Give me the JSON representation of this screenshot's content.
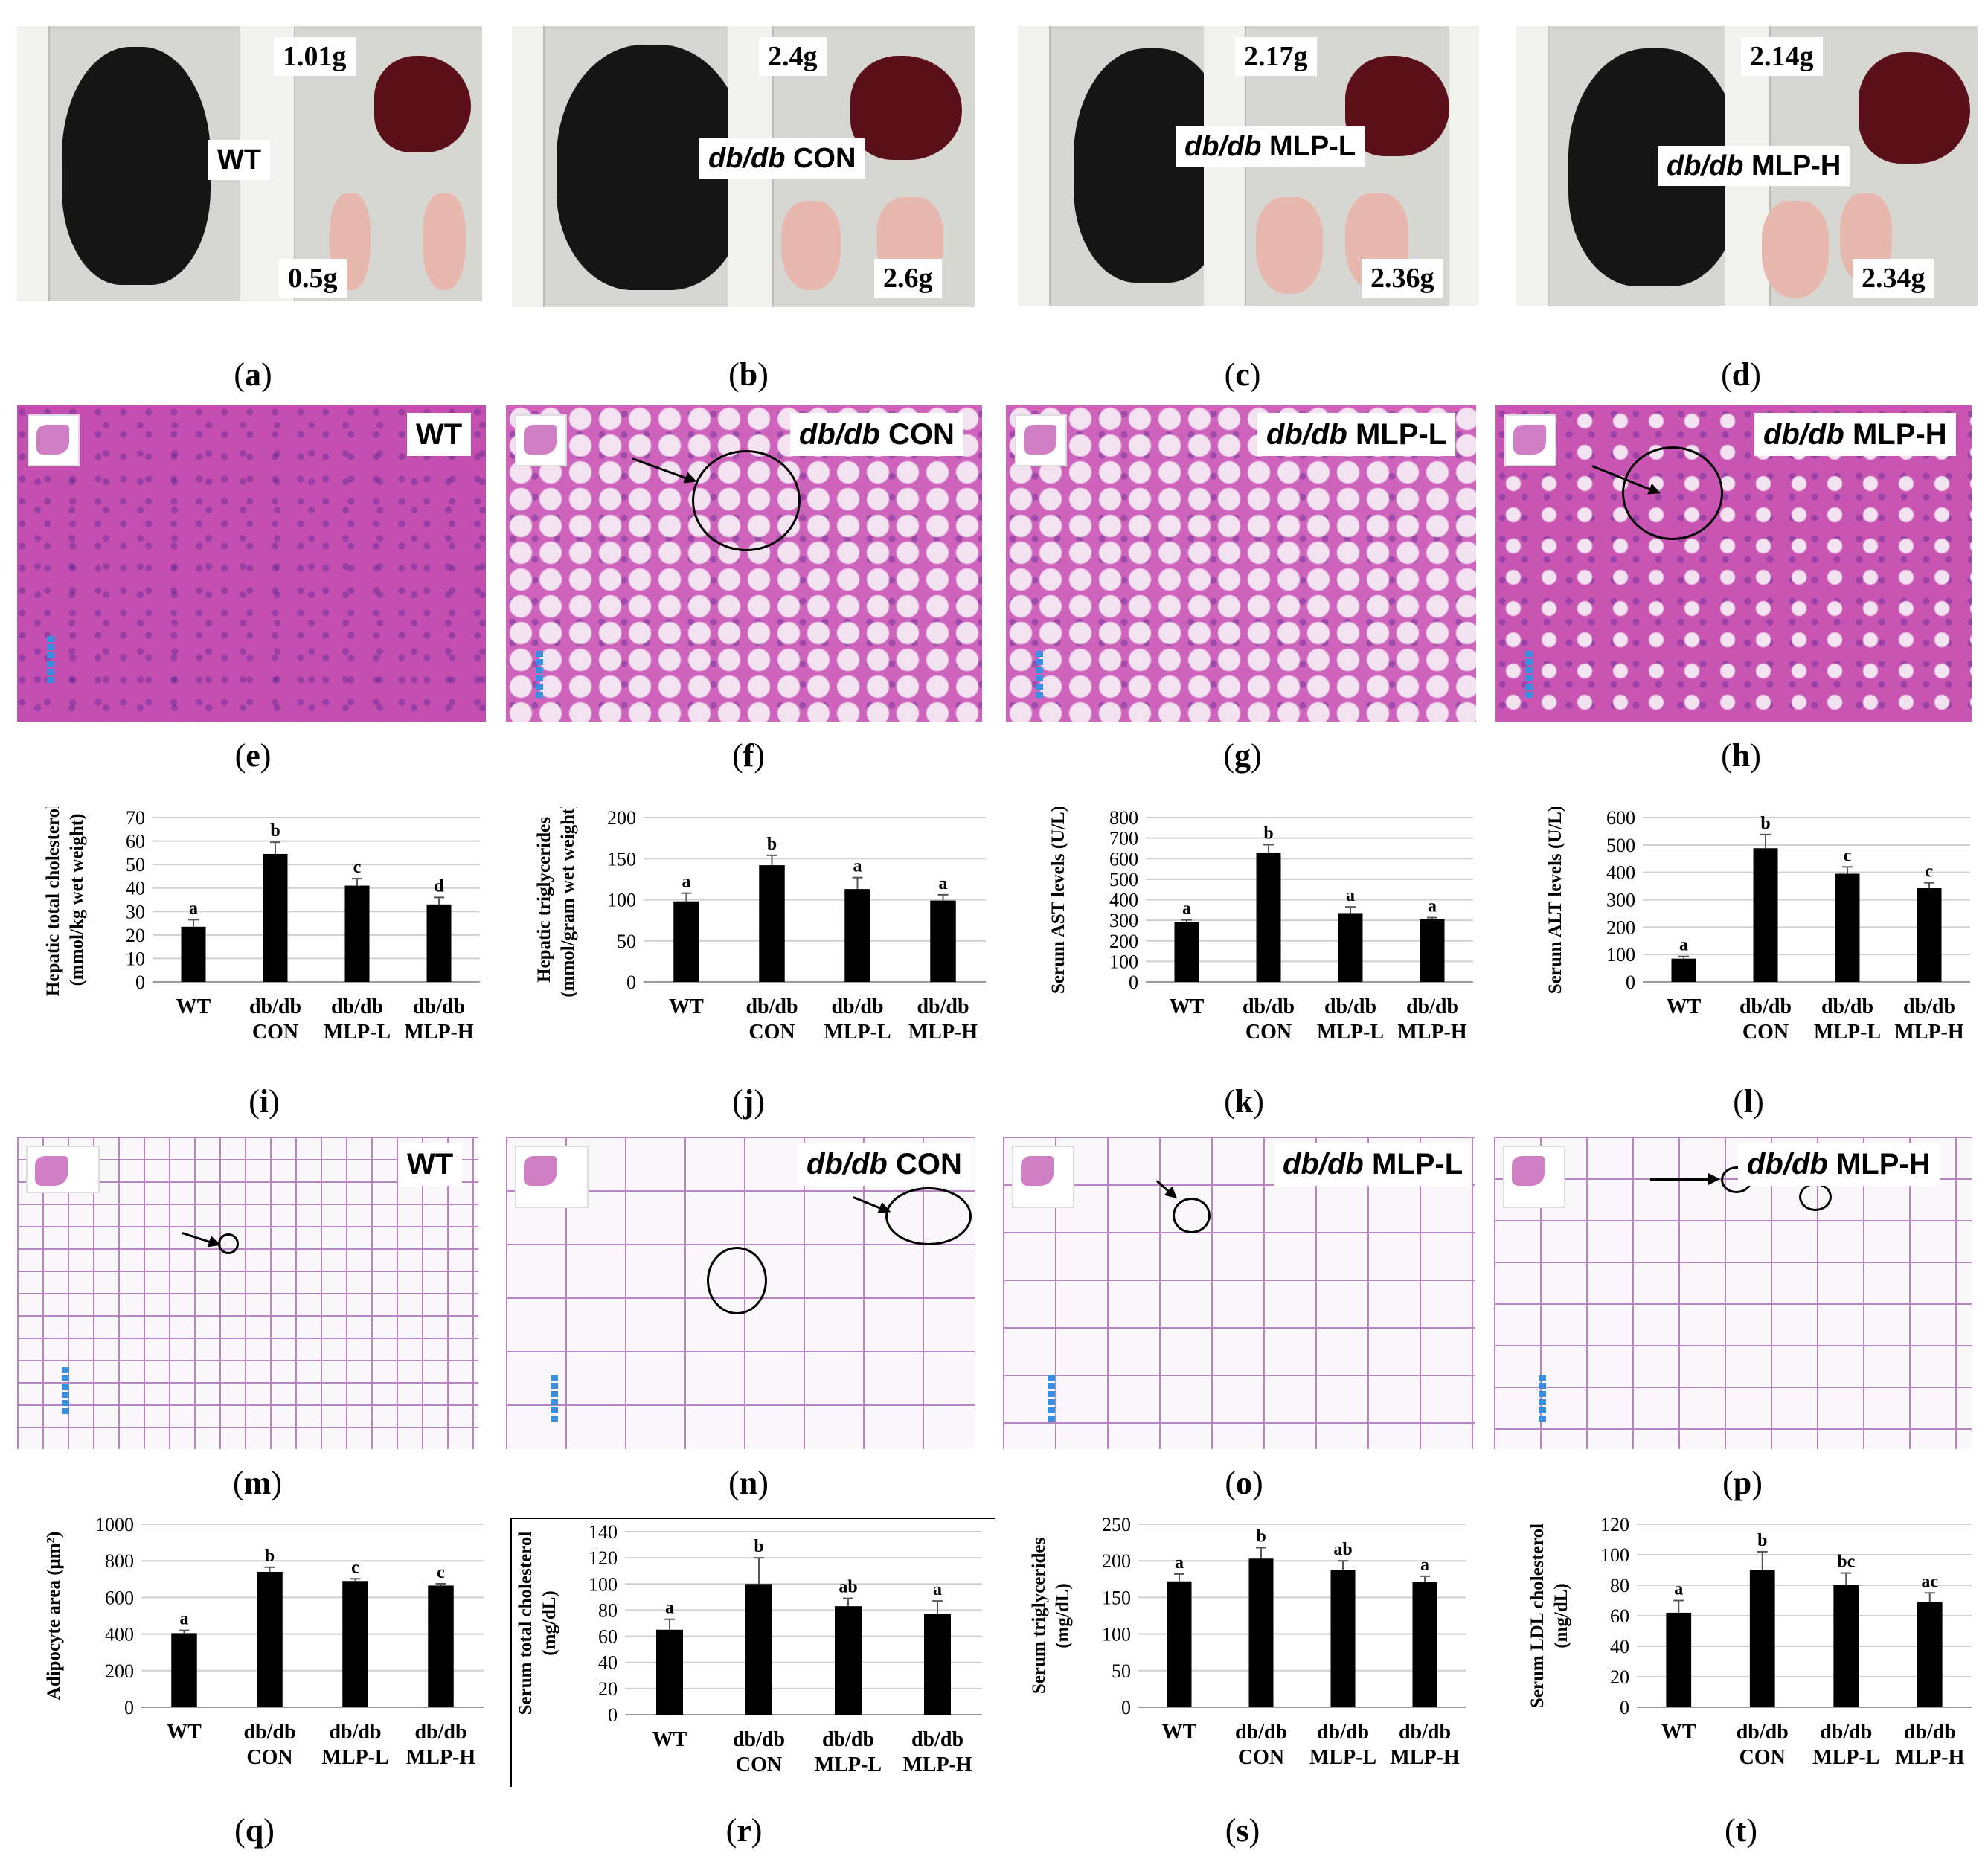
{
  "captions": [
    "a",
    "b",
    "c",
    "d",
    "e",
    "f",
    "g",
    "h",
    "i",
    "j",
    "k",
    "l",
    "m",
    "n",
    "o",
    "p",
    "q",
    "r",
    "s",
    "t"
  ],
  "photos": [
    {
      "group_italic": "",
      "group_rest": "WT",
      "liver_weight": "1.01g",
      "fat_weight": "0.5g"
    },
    {
      "group_italic": "db/db",
      "group_rest": "CON",
      "liver_weight": "2.4g",
      "fat_weight": "2.6g"
    },
    {
      "group_italic": "db/db",
      "group_rest": "MLP-L",
      "liver_weight": "2.17g",
      "fat_weight": "2.36g"
    },
    {
      "group_italic": "db/db",
      "group_rest": "MLP-H",
      "liver_weight": "2.14g",
      "fat_weight": "2.34g"
    }
  ],
  "liver_histology": [
    {
      "group_italic": "",
      "group_rest": "WT"
    },
    {
      "group_italic": "db/db",
      "group_rest": "CON"
    },
    {
      "group_italic": "db/db",
      "group_rest": "MLP-L"
    },
    {
      "group_italic": "db/db",
      "group_rest": "MLP-H"
    }
  ],
  "adipose_histology": [
    {
      "group_italic": "",
      "group_rest": "WT"
    },
    {
      "group_italic": "db/db",
      "group_rest": "CON"
    },
    {
      "group_italic": "db/db",
      "group_rest": "MLP-L"
    },
    {
      "group_italic": "db/db",
      "group_rest": "MLP-H"
    }
  ],
  "chart_data": [
    {
      "type": "bar",
      "panel": "i",
      "ylabel_lines": [
        "Hepatic total cholesterol",
        "(mmol/kg wet weight)"
      ],
      "categories": [
        [
          "WT"
        ],
        [
          "db/db",
          "CON"
        ],
        [
          "db/db",
          "MLP-L"
        ],
        [
          "db/db",
          "MLP-H"
        ]
      ],
      "values": [
        23.5,
        54.5,
        41,
        33
      ],
      "errors": [
        3,
        5,
        3,
        3
      ],
      "letters": [
        "a",
        "b",
        "c",
        "d"
      ],
      "ylim": [
        0,
        70
      ],
      "yticks": [
        0,
        10,
        20,
        30,
        40,
        50,
        60,
        70
      ],
      "grid": true
    },
    {
      "type": "bar",
      "panel": "j",
      "ylabel_lines": [
        "Hepatic triglycerides",
        "(mmol/gram wet weight)"
      ],
      "categories": [
        [
          "WT"
        ],
        [
          "db/db",
          "CON"
        ],
        [
          "db/db",
          "MLP-L"
        ],
        [
          "db/db",
          "MLP-H"
        ]
      ],
      "values": [
        98,
        142,
        113,
        99
      ],
      "errors": [
        10,
        12,
        14,
        7
      ],
      "letters": [
        "a",
        "b",
        "a",
        "a"
      ],
      "ylim": [
        0,
        200
      ],
      "yticks": [
        0,
        50,
        100,
        150,
        200
      ],
      "grid": true
    },
    {
      "type": "bar",
      "panel": "k",
      "ylabel_lines": [
        "Serum AST levels (U/L)"
      ],
      "categories": [
        [
          "WT"
        ],
        [
          "db/db",
          "CON"
        ],
        [
          "db/db",
          "MLP-L"
        ],
        [
          "db/db",
          "MLP-H"
        ]
      ],
      "values": [
        290,
        630,
        335,
        305
      ],
      "errors": [
        12,
        38,
        30,
        8
      ],
      "letters": [
        "a",
        "b",
        "a",
        "a"
      ],
      "ylim": [
        0,
        800
      ],
      "yticks": [
        0,
        100,
        200,
        300,
        400,
        500,
        600,
        700,
        800
      ],
      "grid": true
    },
    {
      "type": "bar",
      "panel": "l",
      "ylabel_lines": [
        "Serum ALT levels (U/L)"
      ],
      "categories": [
        [
          "WT"
        ],
        [
          "db/db",
          "CON"
        ],
        [
          "db/db",
          "MLP-L"
        ],
        [
          "db/db",
          "MLP-H"
        ]
      ],
      "values": [
        85,
        488,
        395,
        342
      ],
      "errors": [
        8,
        50,
        25,
        20
      ],
      "letters": [
        "a",
        "b",
        "c",
        "c"
      ],
      "ylim": [
        0,
        600
      ],
      "yticks": [
        0,
        100,
        200,
        300,
        400,
        500,
        600
      ],
      "grid": true
    },
    {
      "type": "bar",
      "panel": "q",
      "ylabel_lines": [
        "Adipocyte area (μm²)"
      ],
      "categories": [
        [
          "WT"
        ],
        [
          "db/db",
          "CON"
        ],
        [
          "db/db",
          "MLP-L"
        ],
        [
          "db/db",
          "MLP-H"
        ]
      ],
      "values": [
        405,
        740,
        690,
        665
      ],
      "errors": [
        15,
        25,
        12,
        10
      ],
      "letters": [
        "a",
        "b",
        "c",
        "c"
      ],
      "ylim": [
        0,
        1000
      ],
      "yticks": [
        0,
        200,
        400,
        600,
        800,
        1000
      ],
      "grid": true
    },
    {
      "type": "bar",
      "panel": "r",
      "ylabel_lines": [
        "Serum total cholesterol",
        "(mg/dL)"
      ],
      "categories": [
        [
          "WT"
        ],
        [
          "db/db",
          "CON"
        ],
        [
          "db/db",
          "MLP-L"
        ],
        [
          "db/db",
          "MLP-H"
        ]
      ],
      "values": [
        65,
        100,
        83,
        77
      ],
      "errors": [
        8,
        20,
        6,
        10
      ],
      "letters": [
        "a",
        "b",
        "ab",
        "a"
      ],
      "ylim": [
        0,
        140
      ],
      "yticks": [
        0,
        20,
        40,
        60,
        80,
        100,
        120,
        140
      ],
      "grid": true
    },
    {
      "type": "bar",
      "panel": "s",
      "ylabel_lines": [
        "Serum triglycerides",
        "(mg/dL)"
      ],
      "categories": [
        [
          "WT"
        ],
        [
          "db/db",
          "CON"
        ],
        [
          "db/db",
          "MLP-L"
        ],
        [
          "db/db",
          "MLP-H"
        ]
      ],
      "values": [
        172,
        203,
        188,
        171
      ],
      "errors": [
        10,
        15,
        12,
        8
      ],
      "letters": [
        "a",
        "b",
        "ab",
        "a"
      ],
      "ylim": [
        0,
        250
      ],
      "yticks": [
        0,
        50,
        100,
        150,
        200,
        250
      ],
      "grid": true
    },
    {
      "type": "bar",
      "panel": "t",
      "ylabel_lines": [
        "Serum LDL cholesterol",
        "(mg/dL)"
      ],
      "categories": [
        [
          "WT"
        ],
        [
          "db/db",
          "CON"
        ],
        [
          "db/db",
          "MLP-L"
        ],
        [
          "db/db",
          "MLP-H"
        ]
      ],
      "values": [
        62,
        90,
        80,
        69
      ],
      "errors": [
        8,
        12,
        8,
        6
      ],
      "letters": [
        "a",
        "b",
        "bc",
        "ac"
      ],
      "ylim": [
        0,
        120
      ],
      "yticks": [
        0,
        20,
        40,
        60,
        80,
        100,
        120
      ],
      "grid": true
    }
  ]
}
